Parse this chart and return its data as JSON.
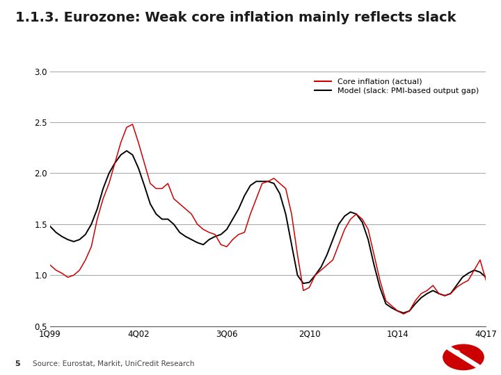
{
  "title": "1.1.3. Eurozone: Weak core inflation mainly reflects slack",
  "title_fontsize": 14,
  "title_color": "#1a1a1a",
  "subtitle_line_color": "#00BFBF",
  "source_text": "Source: Eurostat, Markit, UniCredit Research",
  "source_number": "5",
  "ylim": [
    0.5,
    3.0
  ],
  "yticks": [
    0.5,
    1.0,
    1.5,
    2.0,
    2.5,
    3.0
  ],
  "xtick_labels": [
    "1Q99",
    "4Q02",
    "3Q06",
    "2Q10",
    "1Q14",
    "4Q17"
  ],
  "xtick_positions": [
    0,
    15,
    30,
    44,
    59,
    74
  ],
  "legend_labels": [
    "Core inflation (actual)",
    "Model (slack: PMI-based output gap)"
  ],
  "legend_colors": [
    "#cc0000",
    "#000000"
  ],
  "background_color": "#ffffff",
  "grid_color": "#aaaaaa",
  "red_color": "#cc0000",
  "black_color": "#000000",
  "core_inflation": [
    1.1,
    1.05,
    1.02,
    0.98,
    1.0,
    1.05,
    1.15,
    1.28,
    1.55,
    1.75,
    1.9,
    2.1,
    2.3,
    2.45,
    2.48,
    2.3,
    2.1,
    1.9,
    1.85,
    1.85,
    1.9,
    1.75,
    1.7,
    1.65,
    1.6,
    1.5,
    1.45,
    1.42,
    1.4,
    1.3,
    1.28,
    1.35,
    1.4,
    1.42,
    1.6,
    1.75,
    1.9,
    1.92,
    1.95,
    1.9,
    1.85,
    1.6,
    1.2,
    0.85,
    0.88,
    1.0,
    1.05,
    1.1,
    1.15,
    1.3,
    1.45,
    1.55,
    1.6,
    1.55,
    1.45,
    1.2,
    0.95,
    0.75,
    0.7,
    0.65,
    0.62,
    0.65,
    0.75,
    0.82,
    0.85,
    0.9,
    0.82,
    0.8,
    0.82,
    0.88,
    0.92,
    0.95,
    1.05,
    1.15,
    0.95
  ],
  "model_inflation": [
    1.48,
    1.42,
    1.38,
    1.35,
    1.33,
    1.35,
    1.4,
    1.5,
    1.65,
    1.85,
    2.0,
    2.1,
    2.18,
    2.22,
    2.18,
    2.05,
    1.88,
    1.7,
    1.6,
    1.55,
    1.55,
    1.5,
    1.42,
    1.38,
    1.35,
    1.32,
    1.3,
    1.35,
    1.38,
    1.4,
    1.45,
    1.55,
    1.65,
    1.78,
    1.88,
    1.92,
    1.92,
    1.92,
    1.9,
    1.8,
    1.6,
    1.3,
    1.0,
    0.92,
    0.93,
    1.0,
    1.08,
    1.2,
    1.35,
    1.5,
    1.58,
    1.62,
    1.6,
    1.52,
    1.35,
    1.1,
    0.88,
    0.72,
    0.68,
    0.65,
    0.63,
    0.65,
    0.72,
    0.78,
    0.82,
    0.85,
    0.82,
    0.8,
    0.82,
    0.9,
    0.98,
    1.02,
    1.05,
    1.03,
    0.98
  ]
}
